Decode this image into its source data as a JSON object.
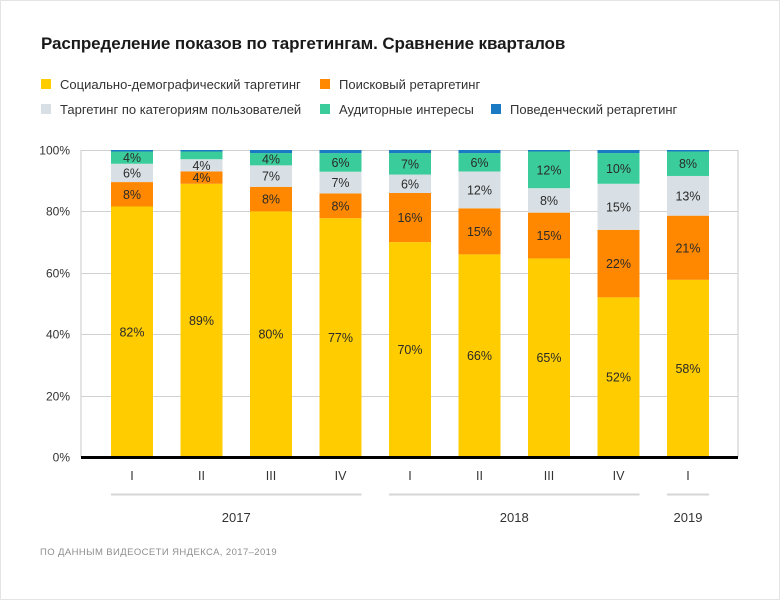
{
  "chart_data": {
    "type": "bar",
    "stacked": true,
    "title": "Распределение показов по таргетингам. Сравнение кварталов",
    "xlabel": "",
    "ylabel": "",
    "ylim": [
      0,
      100
    ],
    "y_ticks": [
      "0%",
      "20%",
      "40%",
      "60%",
      "80%",
      "100%"
    ],
    "y_tick_values": [
      0,
      20,
      40,
      60,
      80,
      100
    ],
    "grid": true,
    "legend_position": "top-left",
    "categories": [
      "I",
      "II",
      "III",
      "IV",
      "I",
      "II",
      "III",
      "IV",
      "I"
    ],
    "groups": [
      {
        "label": "2017",
        "from": 0,
        "to": 3
      },
      {
        "label": "2018",
        "from": 4,
        "to": 7
      },
      {
        "label": "2019",
        "from": 8,
        "to": 8
      }
    ],
    "series": [
      {
        "name": "Социально-демографический таргетинг",
        "color": "#FFCC00",
        "values": [
          82,
          89,
          80,
          77,
          70,
          66,
          65,
          52,
          58
        ],
        "labels": [
          "82%",
          "89%",
          "80%",
          "77%",
          "70%",
          "66%",
          "65%",
          "52%",
          "58%"
        ]
      },
      {
        "name": "Поисковый ретаргетинг",
        "color": "#FF8800",
        "values": [
          8,
          4,
          8,
          8,
          16,
          15,
          15,
          22,
          21
        ],
        "labels": [
          "8%",
          "4%",
          "8%",
          "8%",
          "16%",
          "15%",
          "15%",
          "22%",
          "21%"
        ]
      },
      {
        "name": "Таргетинг по категориям пользователей",
        "color": "#D8E0E6",
        "values": [
          6,
          4,
          7,
          7,
          6,
          12,
          8,
          15,
          13
        ],
        "labels": [
          "6%",
          "4%",
          "7%",
          "7%",
          "6%",
          "12%",
          "8%",
          "15%",
          "13%"
        ]
      },
      {
        "name": "Аудиторные интересы",
        "color": "#3ACC9A",
        "values": [
          4,
          2.5,
          4,
          6,
          7,
          6,
          12,
          10,
          8
        ],
        "labels": [
          "4%",
          "",
          "4%",
          "6%",
          "7%",
          "6%",
          "12%",
          "10%",
          "8%"
        ]
      },
      {
        "name": "Поведенческий ретаргетинг",
        "color": "#1A7AC4",
        "values": [
          0.5,
          0.5,
          1,
          1,
          1,
          1,
          0.5,
          1,
          0.5
        ],
        "labels": [
          "",
          "",
          "",
          "",
          "",
          "",
          "",
          "",
          ""
        ]
      }
    ]
  },
  "source_note": "ПО ДАННЫМ ВИДЕОСЕТИ ЯНДЕКСА, 2017–2019"
}
